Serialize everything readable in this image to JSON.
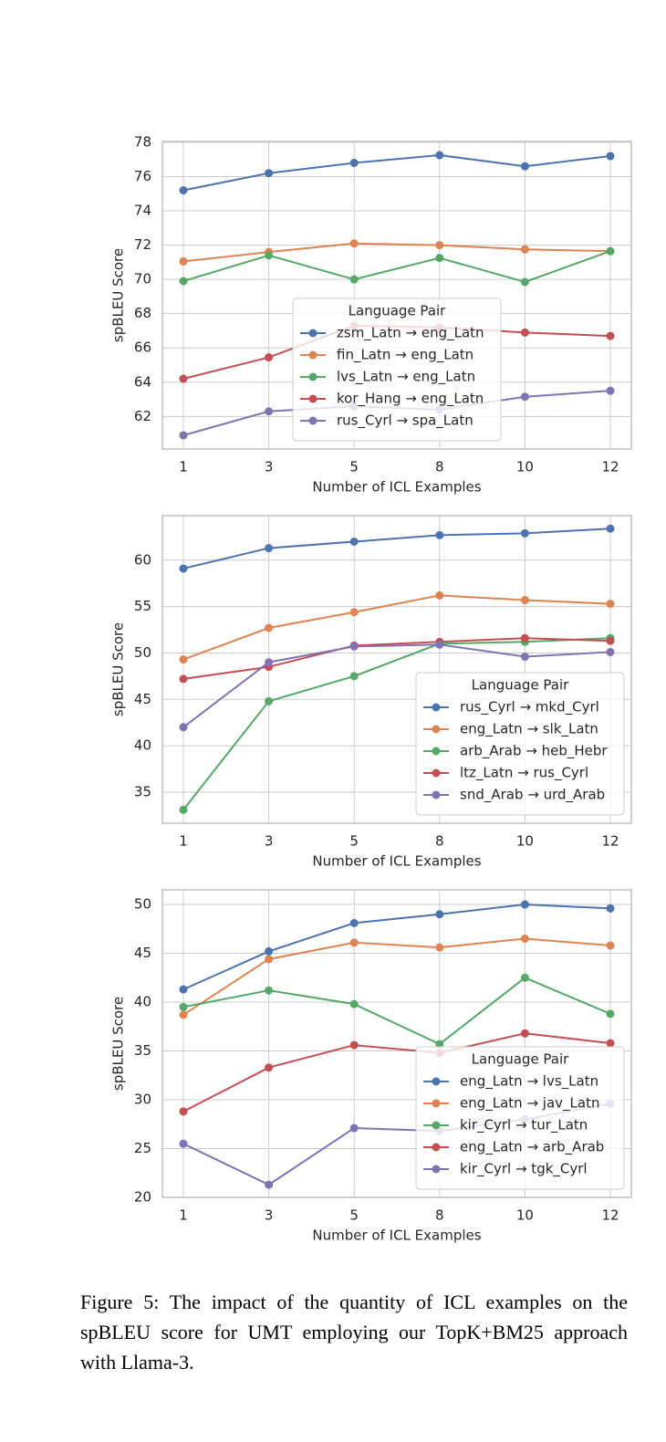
{
  "chart_data": [
    {
      "type": "line",
      "categories": [
        "1",
        "3",
        "5",
        "8",
        "10",
        "12"
      ],
      "xlabel": "Number of ICL Examples",
      "ylabel": "spBLEU Score",
      "ylim": [
        60.1,
        78.05
      ],
      "yticks": [
        62,
        64,
        66,
        68,
        70,
        72,
        74,
        76,
        78
      ],
      "grid": true,
      "legend_title": "Language Pair",
      "legend_loc": "lower center",
      "series": [
        {
          "name": "zsm_Latn → eng_Latn",
          "color": "#4c72b0",
          "values": [
            75.2,
            76.2,
            76.8,
            77.25,
            76.6,
            77.2
          ]
        },
        {
          "name": "fin_Latn → eng_Latn",
          "color": "#dd8452",
          "values": [
            71.05,
            71.6,
            72.1,
            72.0,
            71.75,
            71.65
          ]
        },
        {
          "name": "lvs_Latn → eng_Latn",
          "color": "#55a868",
          "values": [
            69.9,
            71.4,
            70.0,
            71.25,
            69.85,
            71.65
          ]
        },
        {
          "name": "kor_Hang → eng_Latn",
          "color": "#c44e52",
          "values": [
            64.2,
            65.45,
            67.3,
            67.2,
            66.9,
            66.7
          ]
        },
        {
          "name": "rus_Cyrl → spa_Latn",
          "color": "#8172b3",
          "values": [
            60.9,
            62.3,
            62.6,
            62.4,
            63.15,
            63.5
          ]
        }
      ]
    },
    {
      "type": "line",
      "categories": [
        "1",
        "3",
        "5",
        "8",
        "10",
        "12"
      ],
      "xlabel": "Number of ICL Examples",
      "ylabel": "spBLEU Score",
      "ylim": [
        31.65,
        64.8
      ],
      "yticks": [
        35,
        40,
        45,
        50,
        55,
        60
      ],
      "grid": true,
      "legend_title": "Language Pair",
      "legend_loc": "lower right",
      "series": [
        {
          "name": "rus_Cyrl → mkd_Cyrl",
          "color": "#4c72b0",
          "values": [
            59.1,
            61.3,
            62.0,
            62.7,
            62.9,
            63.4
          ]
        },
        {
          "name": "eng_Latn → slk_Latn",
          "color": "#dd8452",
          "values": [
            49.3,
            52.7,
            54.4,
            56.2,
            55.7,
            55.3
          ]
        },
        {
          "name": "arb_Arab → heb_Hebr",
          "color": "#55a868",
          "values": [
            33.1,
            44.8,
            47.5,
            51.0,
            51.2,
            51.6
          ]
        },
        {
          "name": "ltz_Latn → rus_Cyrl",
          "color": "#c44e52",
          "values": [
            47.2,
            48.5,
            50.8,
            51.2,
            51.6,
            51.3
          ]
        },
        {
          "name": "snd_Arab → urd_Arab",
          "color": "#8172b3",
          "values": [
            42.0,
            49.0,
            50.7,
            50.9,
            49.6,
            50.1
          ]
        }
      ]
    },
    {
      "type": "line",
      "categories": [
        "1",
        "3",
        "5",
        "8",
        "10",
        "12"
      ],
      "xlabel": "Number of ICL Examples",
      "ylabel": "spBLEU Score",
      "ylim": [
        20,
        51.5
      ],
      "yticks": [
        20,
        25,
        30,
        35,
        40,
        45,
        50
      ],
      "grid": true,
      "legend_title": "Language Pair",
      "legend_loc": "lower right",
      "series": [
        {
          "name": "eng_Latn → lvs_Latn",
          "color": "#4c72b0",
          "values": [
            41.3,
            45.2,
            48.1,
            49.0,
            50.0,
            49.6
          ]
        },
        {
          "name": "eng_Latn → jav_Latn",
          "color": "#dd8452",
          "values": [
            38.7,
            44.4,
            46.1,
            45.6,
            46.5,
            45.8
          ]
        },
        {
          "name": "kir_Cyrl → tur_Latn",
          "color": "#55a868",
          "values": [
            39.5,
            41.2,
            39.8,
            35.7,
            42.5,
            38.8
          ]
        },
        {
          "name": "eng_Latn → arb_Arab",
          "color": "#c44e52",
          "values": [
            28.8,
            33.3,
            35.6,
            34.8,
            36.8,
            35.8
          ]
        },
        {
          "name": "kir_Cyrl → tgk_Cyrl",
          "color": "#8172b3",
          "values": [
            25.5,
            21.3,
            27.1,
            26.8,
            28.0,
            29.6
          ]
        }
      ]
    }
  ],
  "caption": "Figure 5: The impact of the quantity of ICL examples on the spBLEU score for UMT employing our TopK+BM25 approach with Llama-3."
}
